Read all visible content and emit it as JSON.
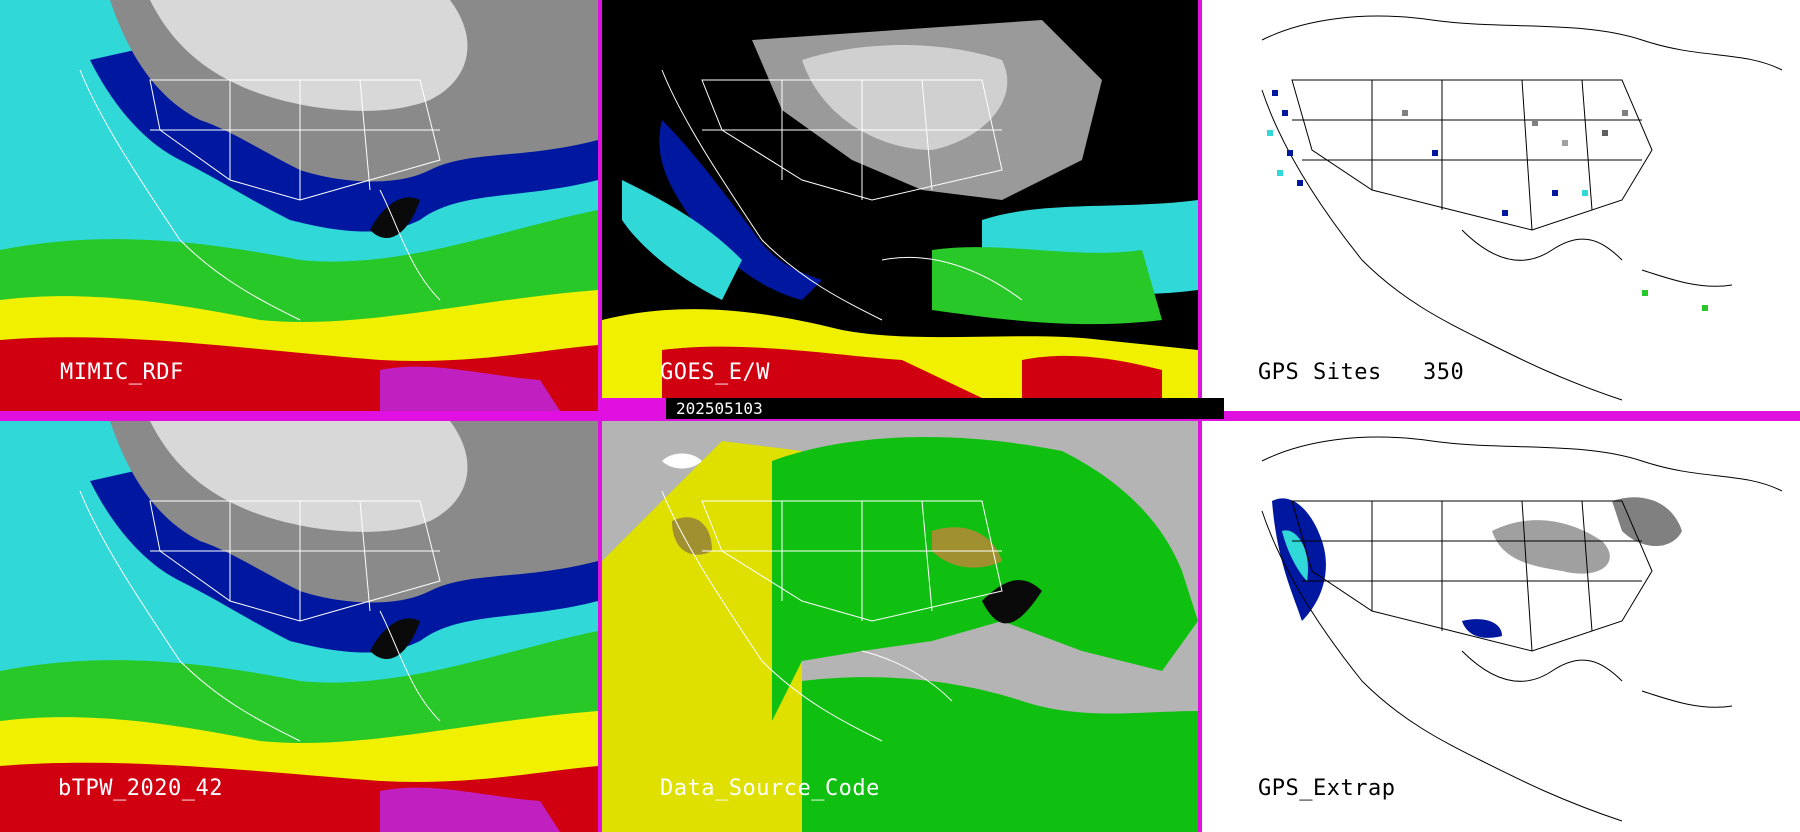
{
  "panels": {
    "top_left": {
      "label": "MIMIC_RDF"
    },
    "top_mid": {
      "label": "GOES_E/W"
    },
    "top_right": {
      "label": "GPS Sites",
      "count": "350"
    },
    "bottom_left": {
      "label": "bTPW_2020_42"
    },
    "bottom_mid": {
      "label": "Data_Source_Code"
    },
    "bottom_right": {
      "label": "GPS_Extrap"
    }
  },
  "timestamp": "202505103",
  "colors": {
    "separator": "#e010e0",
    "ocean_cyan": "#30d8d8",
    "deep_blue": "#0018a0",
    "green": "#28c828",
    "yellow": "#f0f000",
    "red": "#d00010",
    "magenta": "#c020c0",
    "gray_land": "#b4b4b4",
    "source_green": "#10c010",
    "source_yellow": "#e0e000",
    "source_olive": "#a09030"
  }
}
